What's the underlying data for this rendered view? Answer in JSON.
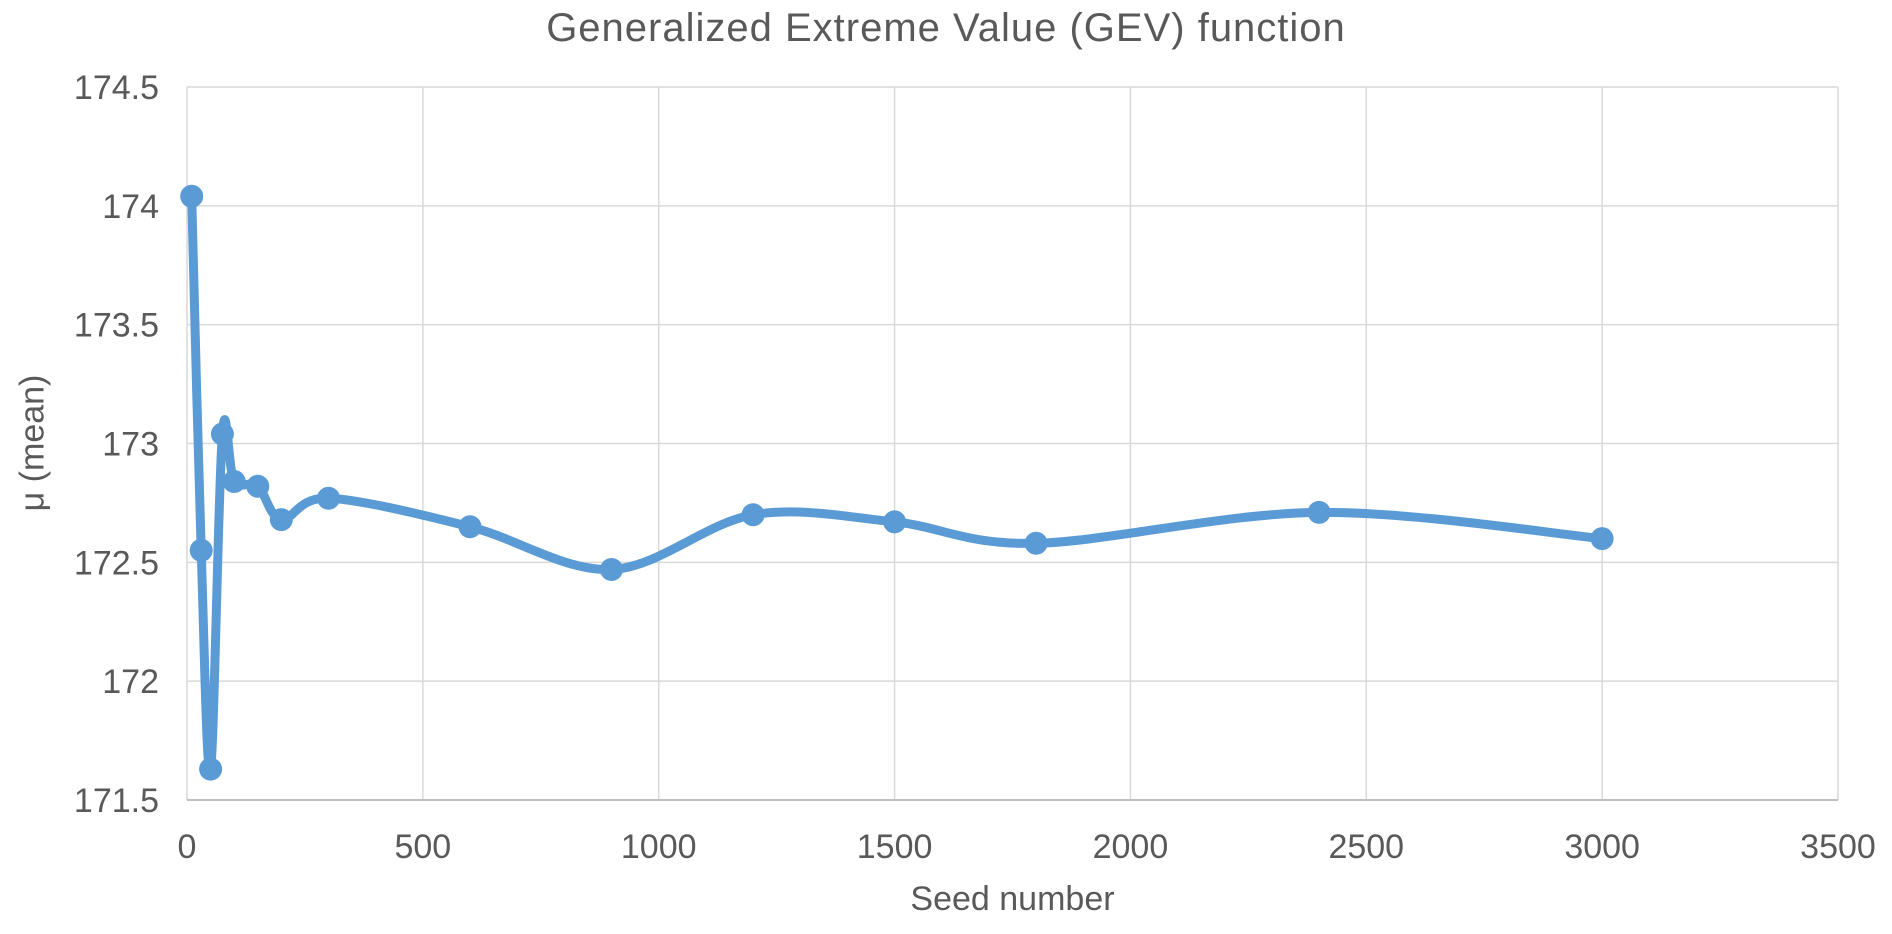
{
  "chart_data": {
    "type": "line",
    "title": "Generalized Extreme Value (GEV) function",
    "xlabel": "Seed number",
    "ylabel": "μ (mean)",
    "x": [
      10,
      30,
      50,
      75,
      100,
      150,
      200,
      300,
      600,
      900,
      1200,
      1500,
      1800,
      2400,
      3000
    ],
    "y": [
      174.04,
      172.55,
      171.63,
      173.04,
      172.84,
      172.82,
      172.68,
      172.77,
      172.65,
      172.47,
      172.7,
      172.67,
      172.58,
      172.71,
      172.6
    ],
    "xlim": [
      0,
      3500
    ],
    "ylim": [
      171.5,
      174.5
    ],
    "x_ticks": [
      0,
      500,
      1000,
      1500,
      2000,
      2500,
      3000,
      3500
    ],
    "y_ticks": [
      171.5,
      172,
      172.5,
      173,
      173.5,
      174,
      174.5
    ],
    "grid": true,
    "legend": "none",
    "line_style": "smooth",
    "markers": "circle",
    "colors": {
      "line": "#5B9BD5",
      "marker": "#5B9BD5",
      "text": "#595959",
      "gridline": "#D9D9D9",
      "axis_line": "#BFBFBF",
      "background": "#FFFFFF"
    }
  }
}
